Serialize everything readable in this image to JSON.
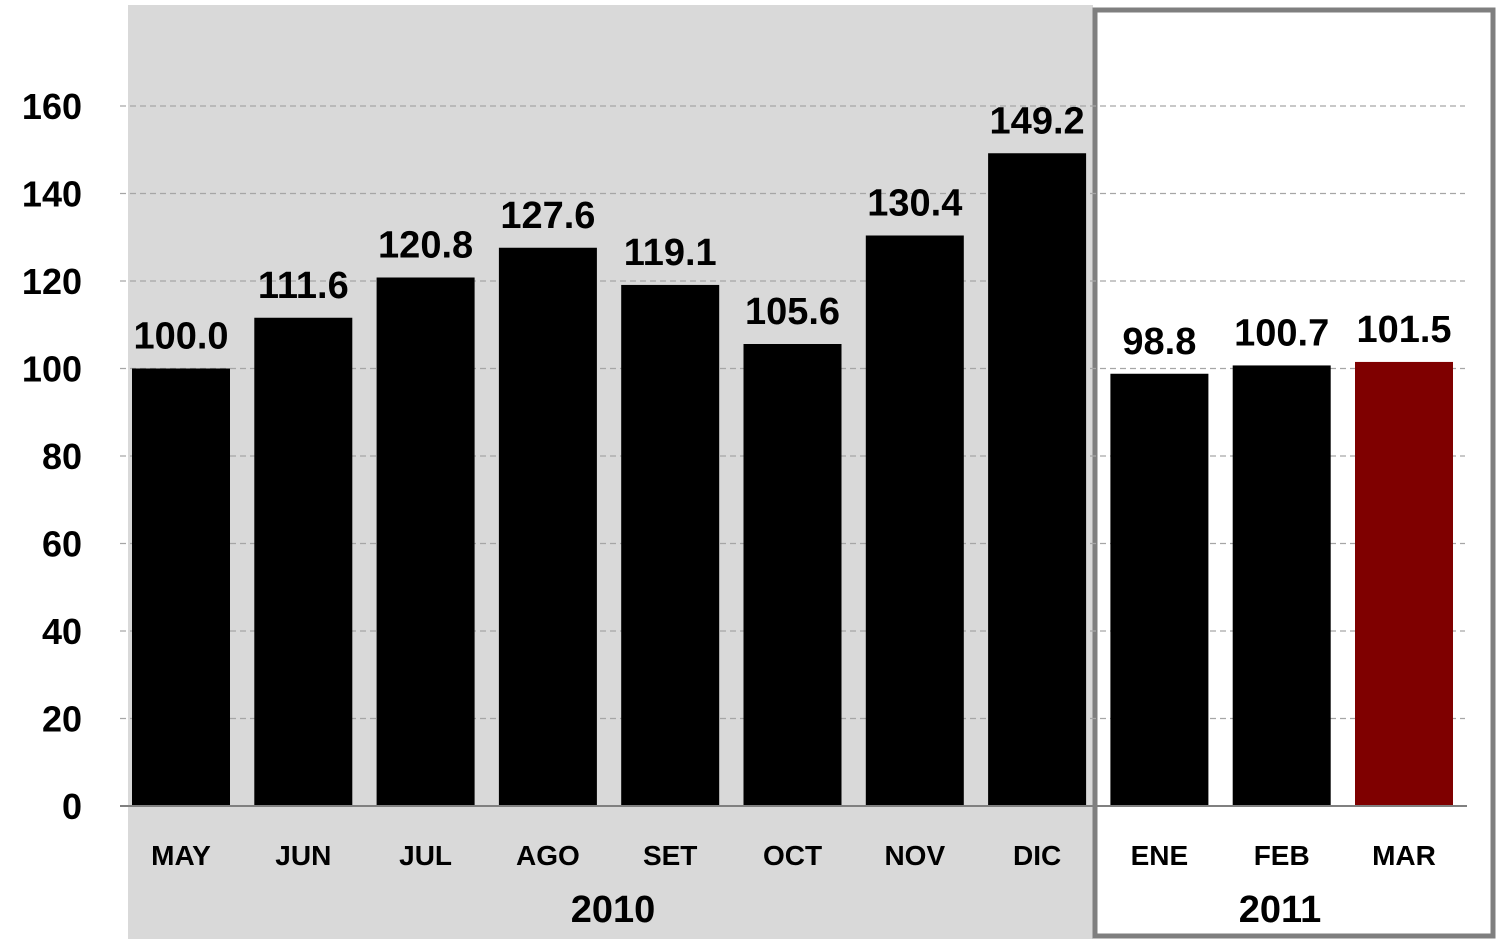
{
  "chart_data": {
    "type": "bar",
    "categories": [
      "MAY",
      "JUN",
      "JUL",
      "AGO",
      "SET",
      "OCT",
      "NOV",
      "DIC",
      "ENE",
      "FEB",
      "MAR"
    ],
    "values": [
      100.0,
      111.6,
      120.8,
      127.6,
      119.1,
      105.6,
      130.4,
      149.2,
      98.8,
      100.7,
      101.5
    ],
    "value_labels": [
      "100.0",
      "111.6",
      "120.8",
      "127.6",
      "119.1",
      "105.6",
      "130.4",
      "149.2",
      "98.8",
      "100.7",
      "101.5"
    ],
    "groups": [
      {
        "label": "2010",
        "categories": [
          "MAY",
          "JUN",
          "JUL",
          "AGO",
          "SET",
          "OCT",
          "NOV",
          "DIC"
        ]
      },
      {
        "label": "2011",
        "categories": [
          "ENE",
          "FEB",
          "MAR"
        ]
      }
    ],
    "y_ticks": [
      "0",
      "20",
      "40",
      "60",
      "80",
      "100",
      "120",
      "140",
      "160"
    ],
    "ylim": [
      0,
      160
    ],
    "grid": true,
    "title": "",
    "xlabel": "",
    "ylabel": "",
    "colors": {
      "bar": "#000000",
      "highlight_bar": "#7f0000",
      "highlight_category": "MAR",
      "band_2010": "#d9d9d9",
      "band_2011_border": "#7f7f7f",
      "gridline": "#a6a6a6"
    }
  }
}
